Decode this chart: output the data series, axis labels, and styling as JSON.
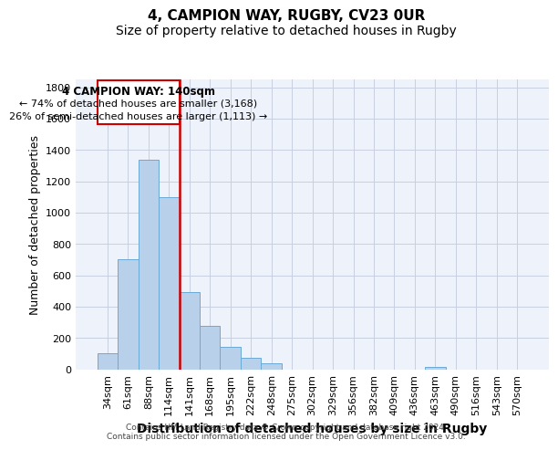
{
  "title_line1": "4, CAMPION WAY, RUGBY, CV23 0UR",
  "title_line2": "Size of property relative to detached houses in Rugby",
  "xlabel": "Distribution of detached houses by size in Rugby",
  "ylabel": "Number of detached properties",
  "footer_line1": "Contains HM Land Registry data © Crown copyright and database right 2024.",
  "footer_line2": "Contains public sector information licensed under the Open Government Licence v3.0.",
  "annotation_line1": "4 CAMPION WAY: 140sqm",
  "annotation_line2": "← 74% of detached houses are smaller (3,168)",
  "annotation_line3": "26% of semi-detached houses are larger (1,113) →",
  "bar_labels": [
    "34sqm",
    "61sqm",
    "88sqm",
    "114sqm",
    "141sqm",
    "168sqm",
    "195sqm",
    "222sqm",
    "248sqm",
    "275sqm",
    "302sqm",
    "329sqm",
    "356sqm",
    "382sqm",
    "409sqm",
    "436sqm",
    "463sqm",
    "490sqm",
    "516sqm",
    "543sqm",
    "570sqm"
  ],
  "bar_values": [
    100,
    700,
    1340,
    1100,
    490,
    275,
    140,
    70,
    35,
    0,
    0,
    0,
    0,
    0,
    0,
    0,
    15,
    0,
    0,
    0,
    0
  ],
  "bar_color": "#b8d0ea",
  "bar_edge_color": "#6aaad4",
  "grid_color": "#c8d0e0",
  "vline_x_index": 4,
  "vline_color": "#cc0000",
  "annotation_box_color": "#cc0000",
  "ylim": [
    0,
    1850
  ],
  "yticks": [
    0,
    200,
    400,
    600,
    800,
    1000,
    1200,
    1400,
    1600,
    1800
  ],
  "background_color": "#eef2fa",
  "title1_fontsize": 11,
  "title2_fontsize": 10,
  "ylabel_fontsize": 9,
  "xlabel_fontsize": 10,
  "tick_fontsize": 8,
  "xtick_fontsize": 8
}
